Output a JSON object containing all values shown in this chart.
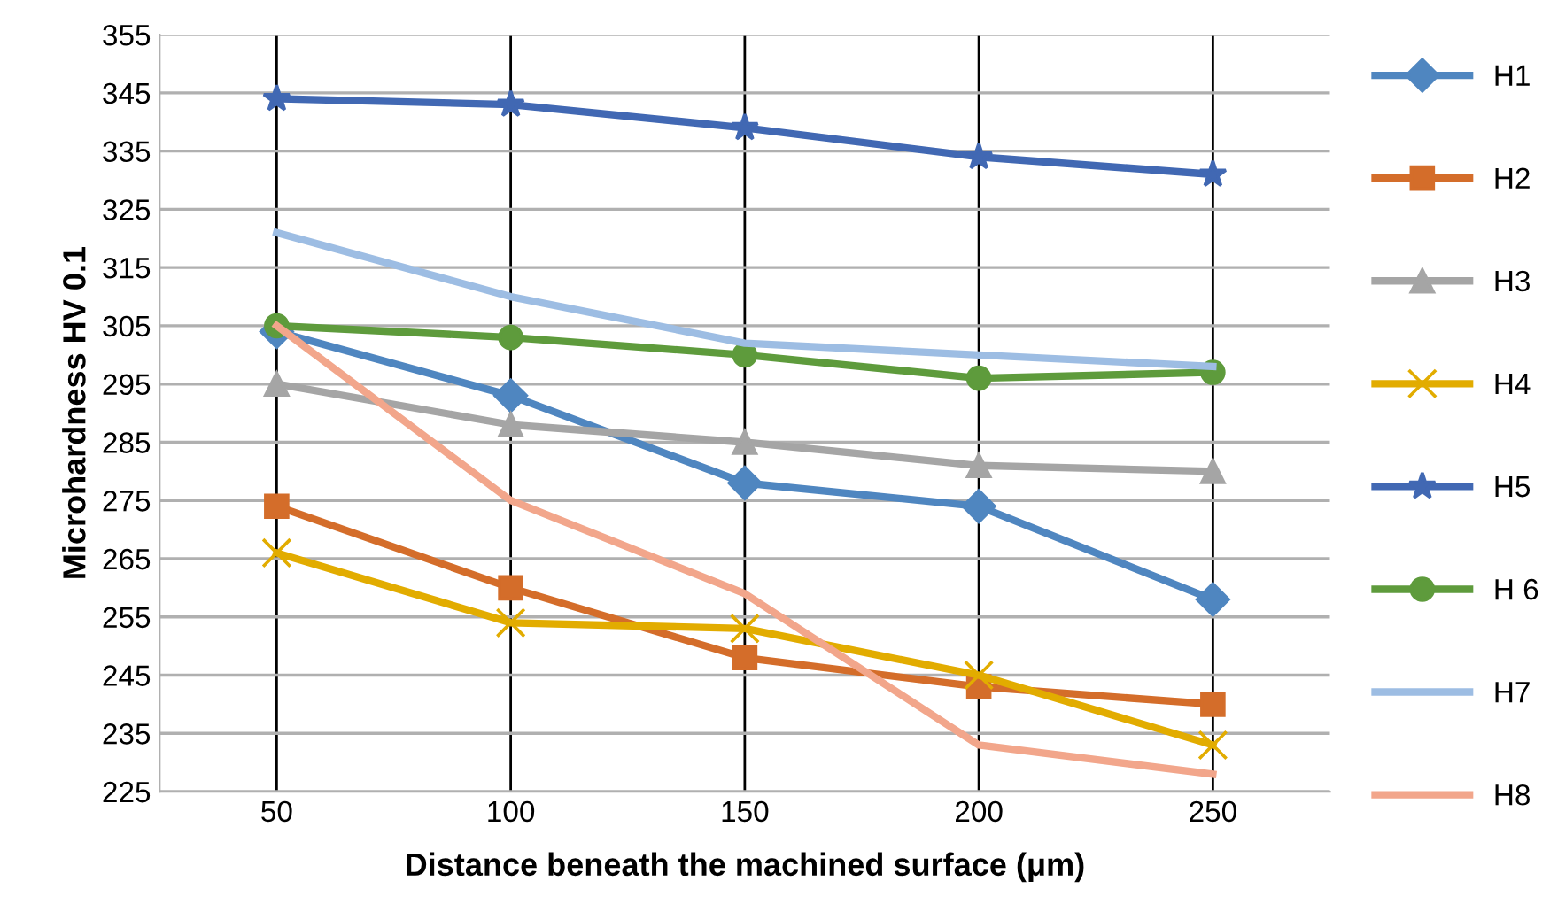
{
  "chart_data": {
    "type": "line",
    "xlabel": "Distance beneath the machined surface (μm)",
    "ylabel": "Microhardness HV 0.1",
    "categories": [
      "50",
      "100",
      "150",
      "200",
      "250"
    ],
    "ylim": [
      225,
      355
    ],
    "yticks": [
      225,
      235,
      245,
      255,
      265,
      275,
      285,
      295,
      305,
      315,
      325,
      335,
      345,
      355
    ],
    "grid": true,
    "legend": "right",
    "series": [
      {
        "name": "H1",
        "color": "#4f86c0",
        "marker": "diamond",
        "values": [
          304,
          293,
          278,
          274,
          258
        ]
      },
      {
        "name": "H2",
        "color": "#d46d2a",
        "marker": "square",
        "values": [
          274,
          260,
          248,
          243,
          240
        ]
      },
      {
        "name": "H3",
        "color": "#a5a5a5",
        "marker": "triangle",
        "values": [
          295,
          288,
          285,
          281,
          280
        ]
      },
      {
        "name": "H4",
        "color": "#e2ac00",
        "marker": "cross",
        "values": [
          266,
          254,
          253,
          245,
          233
        ]
      },
      {
        "name": "H5",
        "color": "#4168b3",
        "marker": "star",
        "values": [
          344,
          343,
          339,
          334,
          331
        ]
      },
      {
        "name": "H 6",
        "color": "#5e9b3c",
        "marker": "circle",
        "values": [
          305,
          303,
          300,
          296,
          297
        ]
      },
      {
        "name": "H7",
        "color": "#9dbde3",
        "marker": "none",
        "values": [
          321,
          310,
          302,
          300,
          298
        ]
      },
      {
        "name": "H8",
        "color": "#f2a68b",
        "marker": "none",
        "values": [
          305,
          275,
          259,
          233,
          228
        ]
      }
    ]
  }
}
